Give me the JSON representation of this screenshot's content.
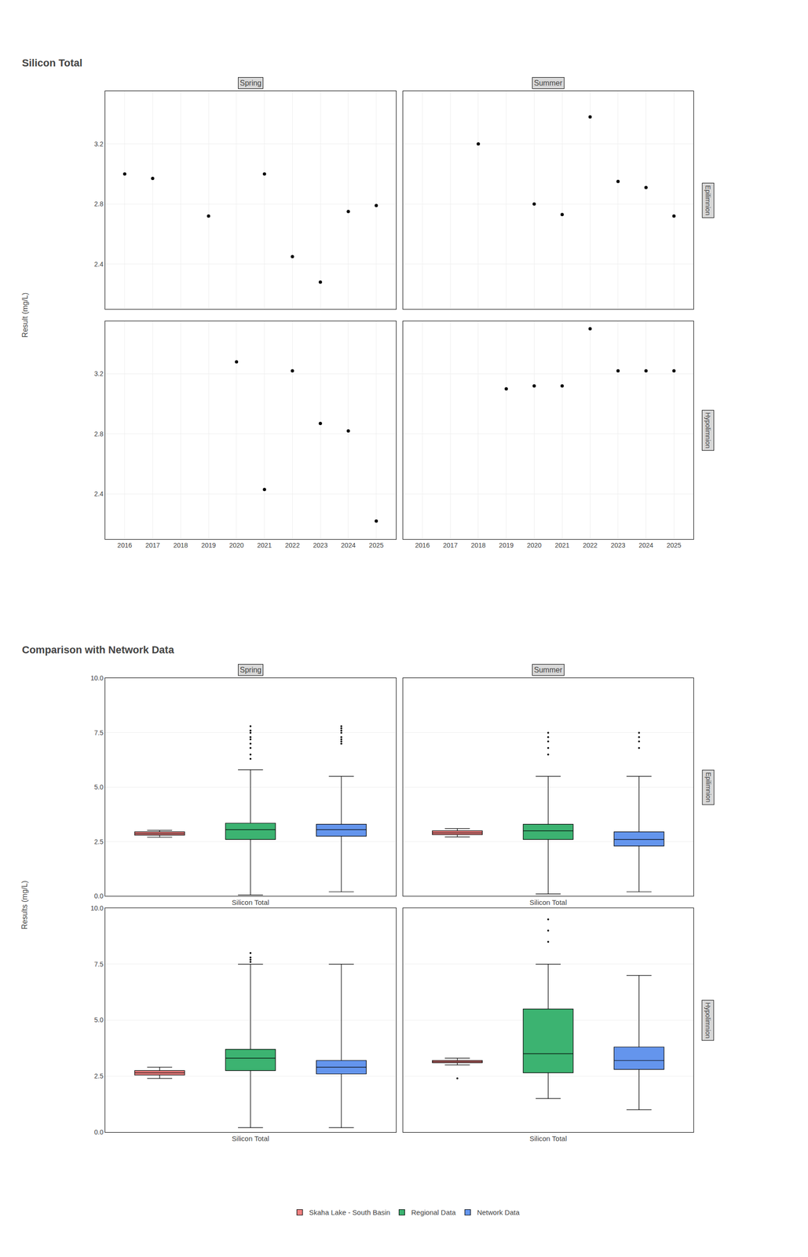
{
  "chart_data": [
    {
      "type": "scatter",
      "title": "Silicon Total",
      "y_label": "Result (mg/L)",
      "columns": [
        "Spring",
        "Summer"
      ],
      "rows": [
        "Epilimnion",
        "Hypolimnion"
      ],
      "color": "black",
      "grid": true,
      "xlim": [
        2015.3,
        2025.7
      ],
      "xticks": [
        2016,
        2017,
        2018,
        2019,
        2020,
        2021,
        2022,
        2023,
        2024,
        2025
      ],
      "ylim": [
        2.1,
        3.55
      ],
      "yticks": [
        2.4,
        2.8,
        3.2
      ],
      "panels": [
        {
          "x": [
            2016,
            2017,
            2019,
            2021,
            2022,
            2023,
            2024,
            2025
          ],
          "values": [
            3.0,
            2.97,
            2.72,
            3.0,
            2.45,
            2.28,
            2.75,
            2.79
          ]
        },
        {
          "x": [
            2018,
            2020,
            2021,
            2022,
            2023,
            2024,
            2025
          ],
          "values": [
            3.2,
            2.8,
            2.73,
            3.38,
            2.95,
            2.91,
            2.72
          ]
        },
        {
          "x": [
            2020,
            2021,
            2022,
            2023,
            2024,
            2025
          ],
          "values": [
            3.28,
            2.43,
            3.22,
            2.87,
            2.82,
            2.22
          ]
        },
        {
          "x": [
            2019,
            2020,
            2021,
            2022,
            2023,
            2024,
            2025
          ],
          "values": [
            3.1,
            3.12,
            3.12,
            3.5,
            3.22,
            3.22,
            3.22
          ]
        }
      ]
    },
    {
      "type": "box",
      "title": "Comparison with Network Data",
      "y_label": "Results (mg/L)",
      "x_label": "Silicon Total",
      "columns": [
        "Spring",
        "Summer"
      ],
      "rows": [
        "Epilimnion",
        "Hypolimnion"
      ],
      "grid": "y",
      "ylim": [
        0.0,
        10.0
      ],
      "yticks": [
        {
          "value": 0.0,
          "label": "0.0"
        },
        2.5,
        {
          "value": 5.0,
          "label": "5.0"
        },
        7.5,
        {
          "value": 10.0,
          "label": "10.0"
        }
      ],
      "series": [
        {
          "name": "Skaha Lake - South Basin",
          "color": "#f08080"
        },
        {
          "name": "Regional Data",
          "color": "#3cb371"
        },
        {
          "name": "Network Data",
          "color": "#6495ed"
        }
      ],
      "panels": [
        {
          "stats": [
            {
              "median": 2.87,
              "q1": 2.8,
              "q3": 2.95,
              "lower_whisker": 2.7,
              "upper_whisker": 3.02,
              "outliers": []
            },
            {
              "median": 3.05,
              "q1": 2.6,
              "q3": 3.35,
              "lower_whisker": 0.05,
              "upper_whisker": 5.8,
              "outliers": [
                7.8,
                7.6,
                7.5,
                7.3,
                7.2,
                7.0,
                6.8,
                6.5,
                6.3
              ]
            },
            {
              "median": 3.05,
              "q1": 2.75,
              "q3": 3.3,
              "lower_whisker": 0.2,
              "upper_whisker": 5.5,
              "outliers": [
                7.8,
                7.7,
                7.6,
                7.5,
                7.3,
                7.2,
                7.1,
                7.0
              ]
            }
          ]
        },
        {
          "stats": [
            {
              "median": 2.9,
              "q1": 2.82,
              "q3": 3.0,
              "lower_whisker": 2.72,
              "upper_whisker": 3.1,
              "outliers": []
            },
            {
              "median": 3.0,
              "q1": 2.6,
              "q3": 3.3,
              "lower_whisker": 0.1,
              "upper_whisker": 5.5,
              "outliers": [
                7.5,
                7.3,
                7.1,
                6.8,
                6.5
              ]
            },
            {
              "median": 2.6,
              "q1": 2.3,
              "q3": 2.95,
              "lower_whisker": 0.2,
              "upper_whisker": 5.5,
              "outliers": [
                7.5,
                7.3,
                7.1,
                6.8
              ]
            }
          ]
        },
        {
          "stats": [
            {
              "median": 2.65,
              "q1": 2.55,
              "q3": 2.75,
              "lower_whisker": 2.4,
              "upper_whisker": 2.9,
              "outliers": []
            },
            {
              "median": 3.3,
              "q1": 2.75,
              "q3": 3.7,
              "lower_whisker": 0.2,
              "upper_whisker": 7.5,
              "outliers": [
                7.6,
                7.7,
                7.8,
                8.0
              ]
            },
            {
              "median": 2.9,
              "q1": 2.6,
              "q3": 3.2,
              "lower_whisker": 0.2,
              "upper_whisker": 7.5,
              "outliers": []
            }
          ]
        },
        {
          "stats": [
            {
              "median": 3.15,
              "q1": 3.1,
              "q3": 3.2,
              "lower_whisker": 3.0,
              "upper_whisker": 3.3,
              "outliers": [
                2.4
              ]
            },
            {
              "median": 3.5,
              "q1": 2.65,
              "q3": 5.5,
              "lower_whisker": 1.5,
              "upper_whisker": 7.5,
              "outliers": [
                8.5,
                9.0,
                9.5
              ]
            },
            {
              "median": 3.2,
              "q1": 2.8,
              "q3": 3.8,
              "lower_whisker": 1.0,
              "upper_whisker": 7.0,
              "outliers": []
            }
          ]
        }
      ]
    }
  ]
}
